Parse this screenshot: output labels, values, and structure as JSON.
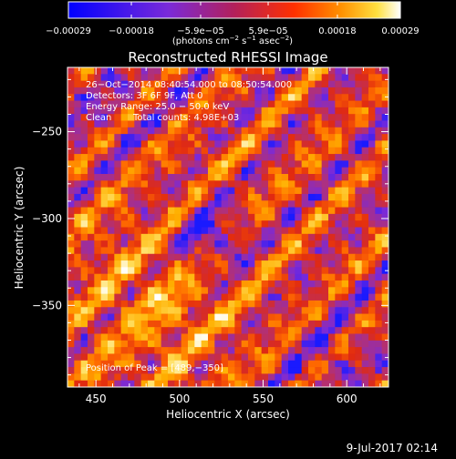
{
  "footer": {
    "timestamp": "9-Jul-2017 02:14"
  },
  "chart_data": {
    "type": "heatmap",
    "title": "Reconstructed RHESSI Image",
    "xlabel": "Heliocentric X (arcsec)",
    "ylabel": "Heliocentric Y (arcsec)",
    "xlim": [
      433,
      625
    ],
    "ylim": [
      -397,
      -213
    ],
    "x_ticks": [
      450,
      500,
      550,
      600
    ],
    "y_ticks": [
      -350,
      -300,
      -250
    ],
    "x_tick_labels": [
      "450",
      "500",
      "550",
      "600"
    ],
    "y_tick_labels": [
      "−350",
      "−300",
      "−250"
    ],
    "colorbar": {
      "range": [
        -0.00029,
        0.00029
      ],
      "ticks": [
        -0.00029,
        -0.00018,
        -5.9e-05,
        5.9e-05,
        0.00018,
        0.00029
      ],
      "tick_labels": [
        "−0.00029",
        "−0.00018",
        "−5.9e−05",
        "5.9e−05",
        "0.00018",
        "0.00029"
      ],
      "unit_main": "(photons cm",
      "unit_exp1": "−2",
      "unit_mid1": " s",
      "unit_exp2": "−1",
      "unit_mid2": " asec",
      "unit_exp3": "−2",
      "unit_end": ")"
    },
    "annotations": {
      "time_range": "26−Oct−2014 08:40:54.000 to 08:50:54.000",
      "detectors": "Detectors: 3F 6F 9F, Att 0",
      "energy": "Energy Range: 25.0 − 50.0 keV",
      "clean_label": "Clean",
      "total_counts": "Total counts: 4.98E+03",
      "peak": "Position of Peak = [489,−350]"
    },
    "peak": {
      "x": 489,
      "y": -350
    },
    "grid": false,
    "colors": {
      "cmap": [
        "#1a1aff",
        "#7a2ad9",
        "#b0307a",
        "#e12a10",
        "#ff6a00",
        "#ffb000",
        "#ffe060",
        "#ffffff"
      ],
      "background": "#000000",
      "text": "#ffffff"
    }
  }
}
